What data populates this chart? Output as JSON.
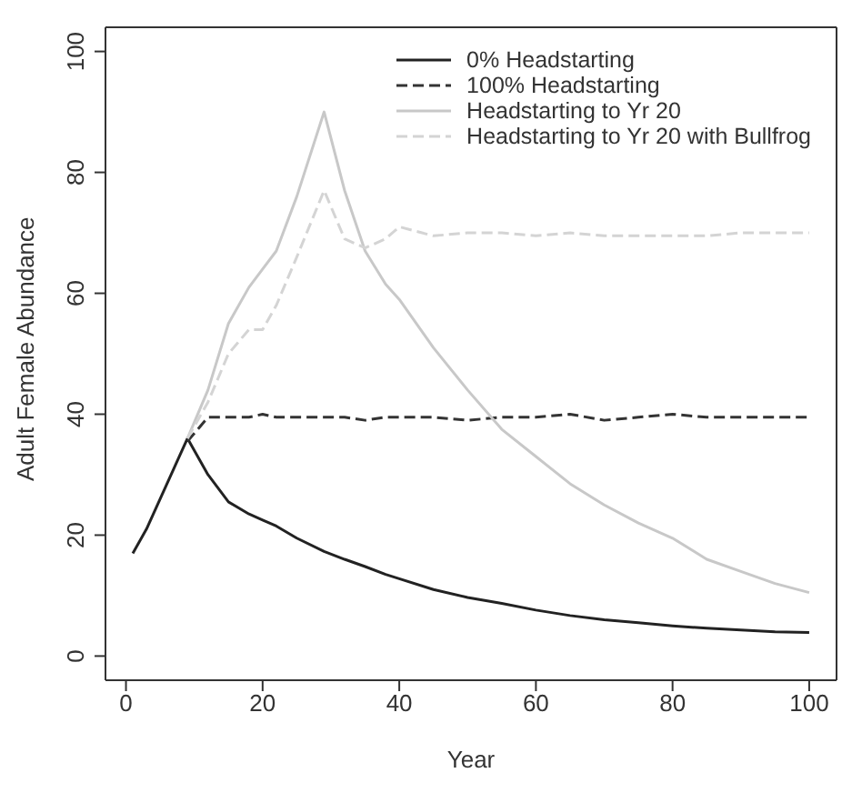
{
  "chart_data": {
    "type": "line",
    "xlabel": "Year",
    "ylabel": "Adult Female Abundance",
    "x": [
      1,
      3,
      5,
      7,
      9,
      12,
      15,
      18,
      20,
      22,
      25,
      29,
      32,
      35,
      38,
      40,
      45,
      50,
      55,
      60,
      65,
      70,
      75,
      80,
      85,
      90,
      95,
      100
    ],
    "series": [
      {
        "name": "0% Headstarting",
        "color": "#222222",
        "line_style": "solid",
        "values": [
          17,
          21,
          26,
          31,
          36,
          30,
          25.5,
          23.5,
          22.5,
          21.5,
          19.5,
          17.3,
          16,
          14.8,
          13.5,
          12.8,
          11,
          9.7,
          8.7,
          7.6,
          6.7,
          6,
          5.5,
          5,
          4.6,
          4.3,
          4,
          3.9
        ]
      },
      {
        "name": "100% Headstarting",
        "color": "#333333",
        "line_style": "dashed",
        "values": [
          null,
          null,
          null,
          null,
          35.5,
          39.5,
          39.5,
          39.5,
          40,
          39.5,
          39.5,
          39.5,
          39.5,
          39,
          39.5,
          39.5,
          39.5,
          39,
          39.5,
          39.5,
          40,
          39,
          39.5,
          40,
          39.5,
          39.5,
          39.5,
          39.5
        ]
      },
      {
        "name": "Headstarting to Yr 20",
        "color": "#c8c8c8",
        "line_style": "solid",
        "values": [
          null,
          null,
          null,
          null,
          36,
          44,
          55,
          61,
          64,
          67,
          76,
          90,
          77,
          67,
          61.5,
          59,
          51,
          44,
          37.5,
          33,
          28.5,
          25,
          22,
          19.5,
          16,
          14,
          12,
          10.5
        ]
      },
      {
        "name": "Headstarting to Yr 20 with Bullfrog",
        "color": "#d4d4d4",
        "line_style": "dashed",
        "values": [
          null,
          null,
          null,
          null,
          36,
          42,
          50,
          54,
          54,
          58,
          66,
          77,
          69,
          67.5,
          69,
          71,
          69.5,
          70,
          70,
          69.5,
          70,
          69.5,
          69.5,
          69.5,
          69.5,
          70,
          70,
          70
        ]
      }
    ],
    "xlim": [
      -3,
      104
    ],
    "ylim": [
      -4,
      104
    ],
    "xticks": [
      0,
      20,
      40,
      60,
      80,
      100
    ],
    "yticks": [
      0,
      20,
      40,
      60,
      80,
      100
    ],
    "legend": "top right",
    "grid": false,
    "marker": "none"
  }
}
